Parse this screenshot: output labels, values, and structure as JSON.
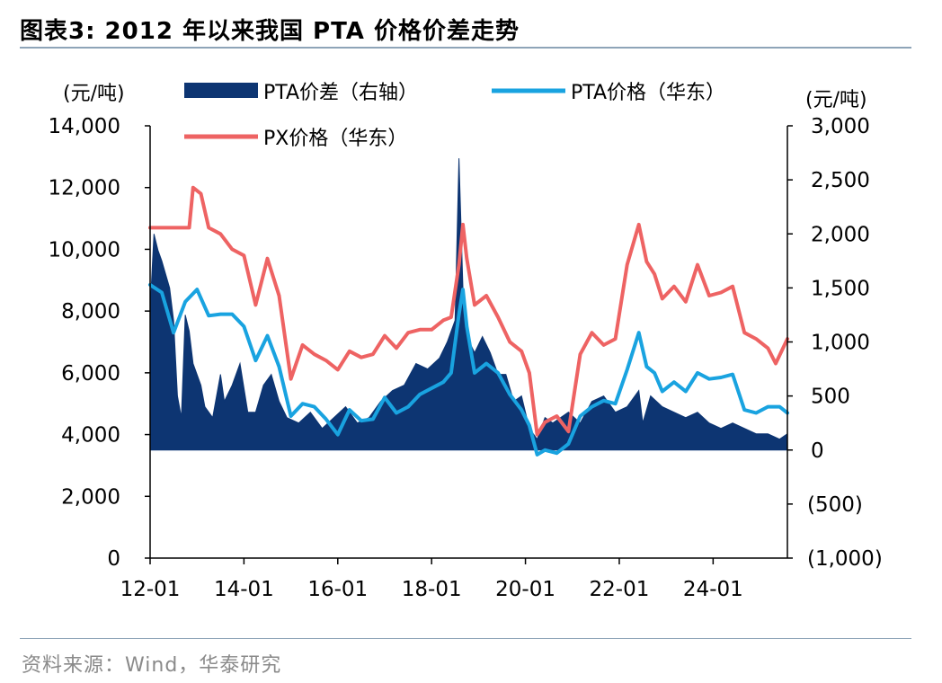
{
  "title": "图表3:   2012 年以来我国 PTA 价格价差走势",
  "source": "资料来源：Wind，华泰研究",
  "colors": {
    "spread": "#0d3572",
    "pta": "#19a3e0",
    "px": "#ee6363",
    "axis": "#000000"
  },
  "chart_data": {
    "type": "line",
    "left_axis": {
      "unit": "(元/吨)",
      "range": [
        0,
        14000
      ],
      "ticks": [
        "0",
        "2,000",
        "4,000",
        "6,000",
        "8,000",
        "10,000",
        "12,000",
        "14,000"
      ]
    },
    "right_axis": {
      "unit": "(元/吨)",
      "range": [
        -1000,
        3000
      ],
      "ticks": [
        "(1,000)",
        "(500)",
        "0",
        "500",
        "1,000",
        "1,500",
        "2,000",
        "2,500",
        "3,000"
      ]
    },
    "x_axis": {
      "range": [
        "2012-01",
        "2025-08"
      ],
      "ticks": [
        "12-01",
        "14-01",
        "16-01",
        "18-01",
        "20-01",
        "22-01",
        "24-01"
      ]
    },
    "legend": [
      "PTA价差（右轴）",
      "PTA价格（华东）",
      "PX价格（华东）"
    ],
    "series": [
      {
        "name": "PTA价差（右轴）",
        "type": "area",
        "axis": "right",
        "points": [
          [
            "2012-01",
            1300
          ],
          [
            "2012-02",
            2000
          ],
          [
            "2012-03",
            1850
          ],
          [
            "2012-04",
            1750
          ],
          [
            "2012-06",
            1500
          ],
          [
            "2012-07",
            1200
          ],
          [
            "2012-08",
            500
          ],
          [
            "2012-09",
            300
          ],
          [
            "2012-10",
            1250
          ],
          [
            "2012-11",
            1100
          ],
          [
            "2012-12",
            800
          ],
          [
            "2013-02",
            600
          ],
          [
            "2013-03",
            400
          ],
          [
            "2013-05",
            300
          ],
          [
            "2013-07",
            700
          ],
          [
            "2013-08",
            450
          ],
          [
            "2013-10",
            600
          ],
          [
            "2013-12",
            800
          ],
          [
            "2014-02",
            350
          ],
          [
            "2014-04",
            350
          ],
          [
            "2014-06",
            600
          ],
          [
            "2014-08",
            700
          ],
          [
            "2014-10",
            450
          ],
          [
            "2014-12",
            300
          ],
          [
            "2015-03",
            250
          ],
          [
            "2015-06",
            350
          ],
          [
            "2015-09",
            200
          ],
          [
            "2015-12",
            300
          ],
          [
            "2016-03",
            400
          ],
          [
            "2016-06",
            250
          ],
          [
            "2016-09",
            300
          ],
          [
            "2016-12",
            450
          ],
          [
            "2017-03",
            550
          ],
          [
            "2017-06",
            600
          ],
          [
            "2017-09",
            800
          ],
          [
            "2017-12",
            750
          ],
          [
            "2018-03",
            850
          ],
          [
            "2018-05",
            1000
          ],
          [
            "2018-07",
            1200
          ],
          [
            "2018-08",
            2700
          ],
          [
            "2018-09",
            1500
          ],
          [
            "2018-10",
            1050
          ],
          [
            "2018-12",
            900
          ],
          [
            "2019-02",
            1050
          ],
          [
            "2019-04",
            900
          ],
          [
            "2019-06",
            700
          ],
          [
            "2019-08",
            700
          ],
          [
            "2019-10",
            450
          ],
          [
            "2019-12",
            500
          ],
          [
            "2020-02",
            200
          ],
          [
            "2020-04",
            100
          ],
          [
            "2020-06",
            300
          ],
          [
            "2020-08",
            250
          ],
          [
            "2020-10",
            300
          ],
          [
            "2020-12",
            350
          ],
          [
            "2021-03",
            250
          ],
          [
            "2021-06",
            450
          ],
          [
            "2021-09",
            500
          ],
          [
            "2021-12",
            350
          ],
          [
            "2022-03",
            400
          ],
          [
            "2022-06",
            550
          ],
          [
            "2022-07",
            250
          ],
          [
            "2022-09",
            500
          ],
          [
            "2022-12",
            400
          ],
          [
            "2023-03",
            350
          ],
          [
            "2023-06",
            300
          ],
          [
            "2023-09",
            350
          ],
          [
            "2023-12",
            250
          ],
          [
            "2024-03",
            200
          ],
          [
            "2024-06",
            250
          ],
          [
            "2024-09",
            200
          ],
          [
            "2024-12",
            150
          ],
          [
            "2025-03",
            150
          ],
          [
            "2025-06",
            100
          ],
          [
            "2025-08",
            150
          ]
        ]
      },
      {
        "name": "PTA价格（华东）",
        "type": "line",
        "axis": "left",
        "points": [
          [
            "2012-01",
            8850
          ],
          [
            "2012-04",
            8600
          ],
          [
            "2012-07",
            7300
          ],
          [
            "2012-10",
            8300
          ],
          [
            "2013-01",
            8700
          ],
          [
            "2013-04",
            7850
          ],
          [
            "2013-07",
            7900
          ],
          [
            "2013-10",
            7900
          ],
          [
            "2014-01",
            7500
          ],
          [
            "2014-04",
            6400
          ],
          [
            "2014-07",
            7200
          ],
          [
            "2014-10",
            6200
          ],
          [
            "2015-01",
            4600
          ],
          [
            "2015-04",
            5000
          ],
          [
            "2015-07",
            4900
          ],
          [
            "2015-10",
            4500
          ],
          [
            "2016-01",
            4000
          ],
          [
            "2016-04",
            4800
          ],
          [
            "2016-07",
            4450
          ],
          [
            "2016-10",
            4500
          ],
          [
            "2017-01",
            5200
          ],
          [
            "2017-04",
            4700
          ],
          [
            "2017-07",
            4900
          ],
          [
            "2017-10",
            5300
          ],
          [
            "2018-01",
            5500
          ],
          [
            "2018-04",
            5700
          ],
          [
            "2018-06",
            6000
          ],
          [
            "2018-08",
            7900
          ],
          [
            "2018-09",
            8700
          ],
          [
            "2018-10",
            7500
          ],
          [
            "2018-12",
            6000
          ],
          [
            "2019-03",
            6300
          ],
          [
            "2019-06",
            6000
          ],
          [
            "2019-09",
            5300
          ],
          [
            "2019-12",
            4800
          ],
          [
            "2020-02",
            4300
          ],
          [
            "2020-04",
            3350
          ],
          [
            "2020-06",
            3500
          ],
          [
            "2020-09",
            3400
          ],
          [
            "2020-12",
            3700
          ],
          [
            "2021-03",
            4600
          ],
          [
            "2021-06",
            4900
          ],
          [
            "2021-09",
            5100
          ],
          [
            "2021-12",
            5000
          ],
          [
            "2022-03",
            6100
          ],
          [
            "2022-06",
            7300
          ],
          [
            "2022-08",
            6200
          ],
          [
            "2022-10",
            6000
          ],
          [
            "2022-12",
            5400
          ],
          [
            "2023-03",
            5700
          ],
          [
            "2023-06",
            5400
          ],
          [
            "2023-09",
            6000
          ],
          [
            "2023-12",
            5800
          ],
          [
            "2024-03",
            5850
          ],
          [
            "2024-06",
            5950
          ],
          [
            "2024-09",
            4800
          ],
          [
            "2024-12",
            4700
          ],
          [
            "2025-03",
            4900
          ],
          [
            "2025-06",
            4900
          ],
          [
            "2025-08",
            4700
          ]
        ]
      },
      {
        "name": "PX价格（华东）",
        "type": "line",
        "axis": "left",
        "points": [
          [
            "2012-01",
            10700
          ],
          [
            "2012-06",
            10700
          ],
          [
            "2012-11",
            10700
          ],
          [
            "2012-12",
            12000
          ],
          [
            "2013-02",
            11800
          ],
          [
            "2013-04",
            10700
          ],
          [
            "2013-07",
            10500
          ],
          [
            "2013-10",
            10000
          ],
          [
            "2014-01",
            9800
          ],
          [
            "2014-04",
            8200
          ],
          [
            "2014-07",
            9700
          ],
          [
            "2014-10",
            8500
          ],
          [
            "2015-01",
            5800
          ],
          [
            "2015-04",
            6900
          ],
          [
            "2015-07",
            6600
          ],
          [
            "2015-10",
            6400
          ],
          [
            "2016-01",
            6100
          ],
          [
            "2016-04",
            6700
          ],
          [
            "2016-07",
            6500
          ],
          [
            "2016-10",
            6600
          ],
          [
            "2017-01",
            7200
          ],
          [
            "2017-04",
            6800
          ],
          [
            "2017-07",
            7300
          ],
          [
            "2017-10",
            7400
          ],
          [
            "2018-01",
            7400
          ],
          [
            "2018-04",
            7700
          ],
          [
            "2018-06",
            7800
          ],
          [
            "2018-08",
            9500
          ],
          [
            "2018-09",
            10800
          ],
          [
            "2018-10",
            9700
          ],
          [
            "2018-12",
            8200
          ],
          [
            "2019-03",
            8500
          ],
          [
            "2019-06",
            7800
          ],
          [
            "2019-09",
            7000
          ],
          [
            "2019-12",
            6700
          ],
          [
            "2020-02",
            6000
          ],
          [
            "2020-04",
            4000
          ],
          [
            "2020-06",
            4400
          ],
          [
            "2020-09",
            4600
          ],
          [
            "2020-12",
            4100
          ],
          [
            "2021-03",
            6600
          ],
          [
            "2021-06",
            7300
          ],
          [
            "2021-09",
            6900
          ],
          [
            "2021-12",
            7100
          ],
          [
            "2022-03",
            9500
          ],
          [
            "2022-06",
            10800
          ],
          [
            "2022-08",
            9600
          ],
          [
            "2022-10",
            9200
          ],
          [
            "2022-12",
            8400
          ],
          [
            "2023-03",
            8800
          ],
          [
            "2023-06",
            8300
          ],
          [
            "2023-09",
            9500
          ],
          [
            "2023-12",
            8500
          ],
          [
            "2024-03",
            8600
          ],
          [
            "2024-06",
            8800
          ],
          [
            "2024-09",
            7300
          ],
          [
            "2024-12",
            7100
          ],
          [
            "2025-03",
            6800
          ],
          [
            "2025-05",
            6300
          ],
          [
            "2025-08",
            7100
          ]
        ]
      }
    ]
  }
}
